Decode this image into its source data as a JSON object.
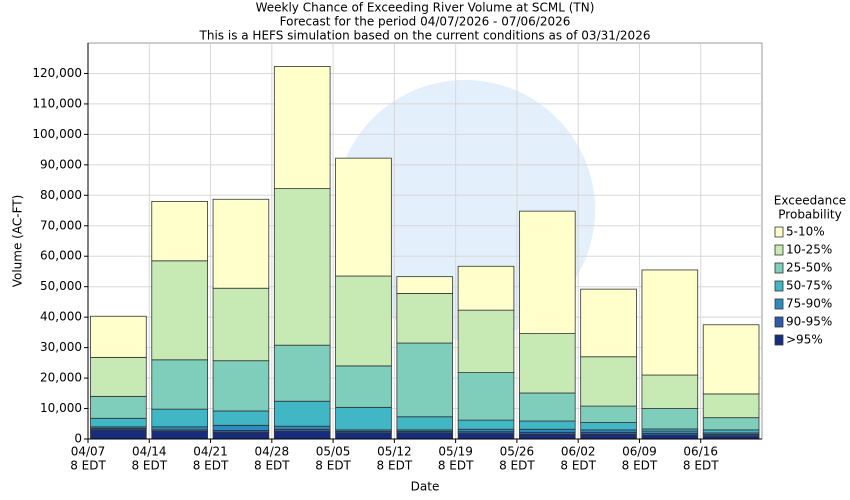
{
  "chart_data": {
    "type": "stacked_bar",
    "title": "Weekly Chance of Exceeding River Volume at SCML (TN)",
    "subtitle": [
      "Forecast for the period 04/07/2026 - 07/06/2026",
      "This is a HEFS simulation based on the current conditions as of 03/31/2026"
    ],
    "x_label": "Date",
    "y_label": "Volume (AC-FT)",
    "categories": [
      "04/07",
      "04/14",
      "04/21",
      "04/28",
      "05/05",
      "05/12",
      "05/19",
      "05/26",
      "06/02",
      "06/09",
      "06/16"
    ],
    "category_sublabel": "8 EDT",
    "legend_title": [
      "Exceedance",
      "Probability"
    ],
    "legend_position": "right",
    "grid": true,
    "ylim": [
      0,
      130000
    ],
    "yticks": [
      0,
      {
        "value": 10000,
        "label": "10,000"
      },
      {
        "value": 20000,
        "label": "20,000"
      },
      {
        "value": 30000,
        "label": "30,000"
      },
      {
        "value": 40000,
        "label": "40,000"
      },
      {
        "value": 50000,
        "label": "50,000"
      },
      {
        "value": 60000,
        "label": "60,000"
      },
      {
        "value": 70000,
        "label": "70,000"
      },
      {
        "value": 80000,
        "label": "80,000"
      },
      {
        "value": 90000,
        "label": "90,000"
      },
      {
        "value": 100000,
        "label": "100,000"
      },
      {
        "value": 110000,
        "label": "110,000"
      },
      {
        "value": 120000,
        "label": "120,000"
      }
    ],
    "series": [
      {
        "name": ">95%",
        "color": "#172c7b",
        "values": [
          3000,
          2500,
          2200,
          2500,
          2000,
          2000,
          1800,
          1500,
          1500,
          1200,
          1000
        ]
      },
      {
        "name": "90-95%",
        "color": "#2a5caa",
        "values": [
          500,
          500,
          600,
          700,
          500,
          500,
          600,
          700,
          700,
          600,
          500
        ]
      },
      {
        "name": "75-90%",
        "color": "#2c8cbf",
        "values": [
          500,
          1000,
          1700,
          1000,
          500,
          500,
          800,
          1000,
          800,
          800,
          500
        ]
      },
      {
        "name": "50-75%",
        "color": "#41b6c4",
        "values": [
          2800,
          5800,
          4700,
          8200,
          7400,
          4300,
          3000,
          2700,
          2400,
          700,
          1000
        ]
      },
      {
        "name": "25-50%",
        "color": "#7fcdbb",
        "values": [
          7200,
          16200,
          16500,
          18400,
          13600,
          24200,
          15600,
          9200,
          5400,
          6700,
          4000
        ]
      },
      {
        "name": "10-25%",
        "color": "#c7e9b4",
        "values": [
          12800,
          32500,
          23800,
          51400,
          29500,
          16300,
          20500,
          19500,
          16200,
          11000,
          7800
        ]
      },
      {
        "name": "5-10%",
        "color": "#ffffcc",
        "values": [
          13500,
          19500,
          29200,
          40100,
          38700,
          5500,
          14400,
          40200,
          22200,
          34500,
          22700
        ]
      }
    ]
  }
}
